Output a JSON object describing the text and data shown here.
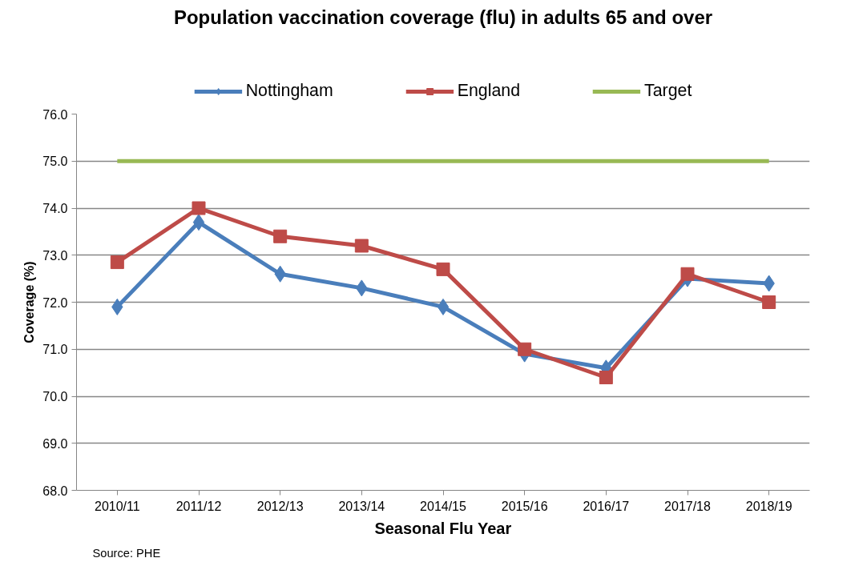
{
  "chart_data": {
    "type": "line",
    "title": "Population vaccination coverage (flu) in adults 65 and over",
    "xlabel": "Seasonal Flu Year",
    "ylabel": "Coverage (%)",
    "categories": [
      "2010/11",
      "2011/12",
      "2012/13",
      "2013/14",
      "2014/15",
      "2015/16",
      "2016/17",
      "2017/18",
      "2018/19"
    ],
    "series": [
      {
        "name": "Nottingham",
        "color": "#4a7ebb",
        "marker": "diamond",
        "values": [
          71.9,
          73.7,
          72.6,
          72.3,
          71.9,
          70.9,
          70.6,
          72.5,
          72.4
        ]
      },
      {
        "name": "England",
        "color": "#be4b48",
        "marker": "square",
        "values": [
          72.85,
          74.0,
          73.4,
          73.2,
          72.7,
          71.0,
          70.4,
          72.6,
          72.0
        ]
      },
      {
        "name": "Target",
        "color": "#98b954",
        "marker": "none",
        "values": [
          75,
          75,
          75,
          75,
          75,
          75,
          75,
          75,
          75
        ]
      }
    ],
    "ylim": [
      68,
      76
    ],
    "yticks": [
      {
        "value": 68,
        "label": "68.0"
      },
      {
        "value": 69,
        "label": "69.0"
      },
      {
        "value": 70,
        "label": "70.0"
      },
      {
        "value": 71,
        "label": "71.0"
      },
      {
        "value": 72,
        "label": "72.0"
      },
      {
        "value": 73,
        "label": "73.0"
      },
      {
        "value": 74,
        "label": "74.0"
      },
      {
        "value": 75,
        "label": "75.0"
      },
      {
        "value": 76,
        "label": "76.0"
      }
    ],
    "grid": "y",
    "legend": "top",
    "line_style": "solid",
    "annotations": [
      "Source: PHE"
    ]
  }
}
